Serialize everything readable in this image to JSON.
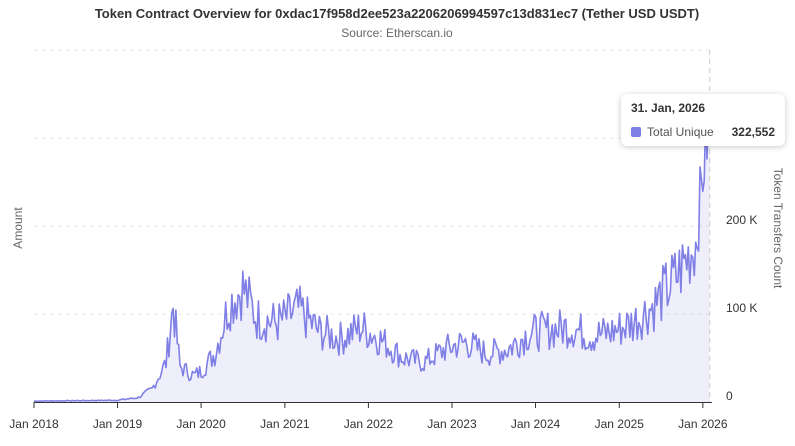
{
  "chart_data": {
    "type": "area",
    "title": "Token Contract Overview for 0xdac17f958d2ee523a2206206994597c13d831ec7 (Tether USD USDT)",
    "subtitle": "Source: Etherscan.io",
    "ylabel_left": "Amount",
    "ylabel_right": "Token Transfers Count",
    "x_ticks": [
      "Jan 2018",
      "Jan 2019",
      "Jan 2020",
      "Jan 2021",
      "Jan 2022",
      "Jan 2023",
      "Jan 2024",
      "Jan 2025",
      "Jan 2026"
    ],
    "y_ticks": [
      "0",
      "100 K",
      "200 K"
    ],
    "y_tick_values": [
      0,
      100000,
      200000
    ],
    "ylim": [
      0,
      400000
    ],
    "xlim": [
      "2018-01-01",
      "2026-02-10"
    ],
    "grid": true,
    "series": [
      {
        "name": "Total Unique",
        "color": "#7f7fe6",
        "x": [
          "2018-01",
          "2018-07",
          "2019-01",
          "2019-04",
          "2019-06",
          "2019-08",
          "2019-09",
          "2019-10",
          "2019-12",
          "2020-01",
          "2020-03",
          "2020-05",
          "2020-07",
          "2020-09",
          "2020-12",
          "2021-03",
          "2021-06",
          "2021-09",
          "2021-12",
          "2022-03",
          "2022-06",
          "2022-09",
          "2022-12",
          "2023-03",
          "2023-06",
          "2023-09",
          "2023-12",
          "2024-03",
          "2024-06",
          "2024-09",
          "2024-12",
          "2025-03",
          "2025-06",
          "2025-09",
          "2025-12",
          "2026-01",
          "2026-01-31"
        ],
        "values": [
          1000,
          1500,
          2000,
          5000,
          15000,
          45000,
          110000,
          40000,
          30000,
          35000,
          55000,
          110000,
          130000,
          95000,
          90000,
          105000,
          80000,
          72000,
          85000,
          70000,
          50000,
          45000,
          60000,
          68000,
          55000,
          60000,
          78000,
          82000,
          85000,
          75000,
          80000,
          90000,
          110000,
          140000,
          180000,
          260000,
          322552
        ]
      }
    ],
    "tooltip": {
      "date": "31. Jan, 2026",
      "series": "Total Unique",
      "value": "322,552"
    }
  }
}
